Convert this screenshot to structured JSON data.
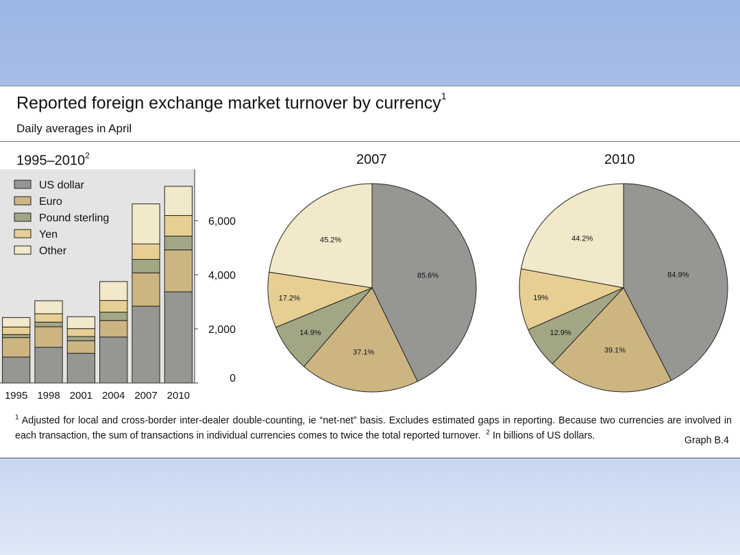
{
  "header": {
    "title": "Reported foreign exchange market turnover by currency",
    "title_sup": "1",
    "subtitle": "Daily averages in April"
  },
  "panels": {
    "left_label": "1995–2010",
    "left_label_sup": "2",
    "mid_label": "2007",
    "right_label": "2010"
  },
  "footnote": {
    "sup1": "1",
    "text1": " Adjusted for local and cross-border inter-dealer double-counting, ie “net-net” basis. Excludes estimated gaps in reporting. Because two currencies are involved in each transaction, the sum of transactions in individual currencies comes to twice the total reported turnover.",
    "sup2": "2",
    "text2": " In billions of US dollars."
  },
  "graph_id": "Graph B.4",
  "colors": {
    "US dollar": "#969793",
    "Euro": "#cdb582",
    "Pound sterling": "#a3a684",
    "Yen": "#e7cf93",
    "Other": "#f2e8ca",
    "plot_bg": "#e4e4e4"
  },
  "chart_data": [
    {
      "type": "bar",
      "stacked": true,
      "categories": [
        "1995",
        "1998",
        "2001",
        "2004",
        "2007",
        "2010"
      ],
      "series": [
        {
          "name": "US dollar",
          "values": [
            960,
            1320,
            1100,
            1700,
            2840,
            3370
          ]
        },
        {
          "name": "Euro",
          "values": [
            720,
            760,
            460,
            610,
            1230,
            1550
          ]
        },
        {
          "name": "Pound sterling",
          "values": [
            110,
            170,
            160,
            310,
            500,
            510
          ]
        },
        {
          "name": "Yen",
          "values": [
            280,
            310,
            290,
            430,
            570,
            760
          ]
        },
        {
          "name": "Other",
          "values": [
            350,
            480,
            440,
            700,
            1480,
            1080
          ]
        }
      ],
      "yticks": [
        0,
        2000,
        4000,
        6000
      ],
      "ytick_labels": [
        "0",
        "2,000",
        "4,000",
        "6,000"
      ],
      "ylim": [
        0,
        7900
      ],
      "legend_position": "top-left",
      "grid": false
    },
    {
      "type": "pie",
      "title": "2007",
      "labels": [
        "US dollar",
        "Euro",
        "Pound sterling",
        "Yen",
        "Other"
      ],
      "values": [
        85.6,
        37.1,
        14.9,
        17.2,
        45.2
      ],
      "value_labels": [
        "85.6%",
        "37.1%",
        "14.9%",
        "17.2%",
        "45.2%"
      ]
    },
    {
      "type": "pie",
      "title": "2010",
      "labels": [
        "US dollar",
        "Euro",
        "Pound sterling",
        "Yen",
        "Other"
      ],
      "values": [
        84.9,
        39.1,
        12.9,
        19,
        44.2
      ],
      "value_labels": [
        "84.9%",
        "39.1%",
        "12.9%",
        "19%",
        "44.2%"
      ]
    }
  ]
}
